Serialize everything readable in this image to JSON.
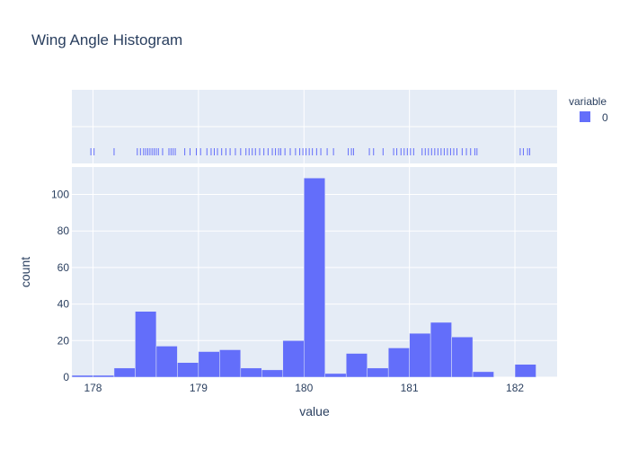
{
  "chart_data": {
    "type": "bar",
    "title": "Wing Angle Histogram",
    "xlabel": "value",
    "ylabel": "count",
    "xlim": [
      177.8,
      182.4
    ],
    "ylim": [
      0,
      115
    ],
    "x_ticks": [
      178,
      179,
      180,
      181,
      182
    ],
    "y_ticks": [
      0,
      20,
      40,
      60,
      80,
      100
    ],
    "bin_width": 0.2,
    "bins": [
      {
        "start": 177.8,
        "count": 1
      },
      {
        "start": 178.0,
        "count": 1
      },
      {
        "start": 178.2,
        "count": 5
      },
      {
        "start": 178.4,
        "count": 36
      },
      {
        "start": 178.6,
        "count": 17
      },
      {
        "start": 178.8,
        "count": 8
      },
      {
        "start": 179.0,
        "count": 14
      },
      {
        "start": 179.2,
        "count": 15
      },
      {
        "start": 179.4,
        "count": 5
      },
      {
        "start": 179.6,
        "count": 4
      },
      {
        "start": 179.8,
        "count": 20
      },
      {
        "start": 180.0,
        "count": 109
      },
      {
        "start": 180.2,
        "count": 2
      },
      {
        "start": 180.4,
        "count": 13
      },
      {
        "start": 180.6,
        "count": 5
      },
      {
        "start": 180.8,
        "count": 16
      },
      {
        "start": 181.0,
        "count": 24
      },
      {
        "start": 181.2,
        "count": 30
      },
      {
        "start": 181.4,
        "count": 22
      },
      {
        "start": 181.6,
        "count": 3
      },
      {
        "start": 181.8,
        "count": 0
      },
      {
        "start": 182.0,
        "count": 7
      }
    ],
    "rug_values": [
      177.98,
      178.01,
      178.2,
      178.42,
      178.45,
      178.48,
      178.5,
      178.52,
      178.54,
      178.56,
      178.58,
      178.6,
      178.62,
      178.66,
      178.72,
      178.74,
      178.76,
      178.78,
      178.87,
      178.92,
      178.98,
      179.02,
      179.08,
      179.12,
      179.15,
      179.18,
      179.22,
      179.26,
      179.3,
      179.35,
      179.4,
      179.45,
      179.48,
      179.51,
      179.54,
      179.58,
      179.62,
      179.66,
      179.7,
      179.73,
      179.76,
      179.78,
      179.82,
      179.87,
      179.92,
      179.96,
      179.99,
      180.02,
      180.05,
      180.08,
      180.12,
      180.16,
      180.22,
      180.28,
      180.42,
      180.45,
      180.47,
      180.62,
      180.66,
      180.75,
      180.85,
      180.88,
      180.92,
      180.95,
      180.98,
      181.01,
      181.04,
      181.12,
      181.15,
      181.18,
      181.21,
      181.24,
      181.27,
      181.3,
      181.33,
      181.36,
      181.39,
      181.42,
      181.45,
      181.5,
      181.54,
      181.58,
      181.62,
      181.64,
      182.05,
      182.08,
      182.12,
      182.14
    ],
    "series": [
      {
        "name": "0",
        "color": "#636efa"
      }
    ],
    "legend": {
      "title": "variable",
      "position": "top-right"
    },
    "grid": true,
    "colors": {
      "bar": "#636efa",
      "plot_bg": "#e5ecf6",
      "grid": "#ffffff",
      "text": "#2a3f5f"
    }
  }
}
